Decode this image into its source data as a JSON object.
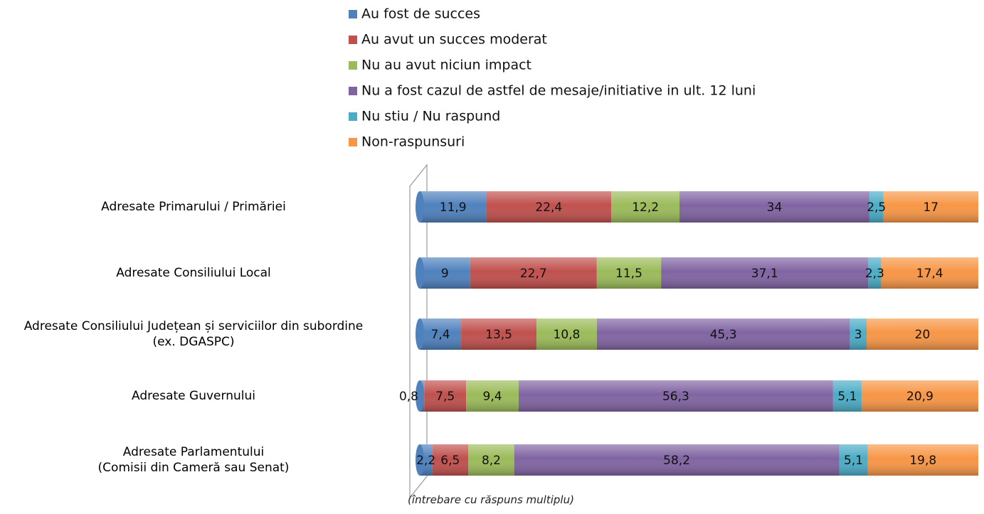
{
  "chart_data": {
    "type": "stacked-bar-horizontal",
    "categories": [
      "Adresate Primarului / Primăriei",
      "Adresate Consiliului Local",
      "Adresate Consiliului Județean și serviciilor din subordine\n(ex. DGASPC)",
      "Adresate Guvernului",
      "Adresate Parlamentului\n(Comisii din Cameră sau Senat)"
    ],
    "series": [
      {
        "name": "Au fost de succes",
        "color": "#4f81bd",
        "values": [
          11.9,
          9,
          7.4,
          0.8,
          2.2
        ],
        "value_labels": [
          "11,9",
          "9",
          "7,4",
          "0,8",
          "2,2"
        ]
      },
      {
        "name": "Au avut un succes moderat",
        "color": "#c0504d",
        "values": [
          22.4,
          22.7,
          13.5,
          7.5,
          6.5
        ],
        "value_labels": [
          "22,4",
          "22,7",
          "13,5",
          "7,5",
          "6,5"
        ]
      },
      {
        "name": "Nu au avut niciun impact",
        "color": "#9bbb59",
        "values": [
          12.2,
          11.5,
          10.8,
          9.4,
          8.2
        ],
        "value_labels": [
          "12,2",
          "11,5",
          "10,8",
          "9,4",
          "8,2"
        ]
      },
      {
        "name": "Nu a fost cazul de astfel de mesaje/initiative in ult. 12 luni",
        "color": "#8064a2",
        "values": [
          34,
          37.1,
          45.3,
          56.3,
          58.2
        ],
        "value_labels": [
          "34",
          "37,1",
          "45,3",
          "56,3",
          "58,2"
        ]
      },
      {
        "name": "Nu stiu / Nu raspund",
        "color": "#4bacc6",
        "values": [
          2.5,
          2.3,
          3,
          5.1,
          5.1
        ],
        "value_labels": [
          "2,5",
          "2,3",
          "3",
          "5,1",
          "5,1"
        ]
      },
      {
        "name": "Non-raspunsuri",
        "color": "#f79646",
        "values": [
          17,
          17.4,
          20,
          20.9,
          19.8
        ],
        "value_labels": [
          "17",
          "17,4",
          "20",
          "20,9",
          "19,8"
        ]
      }
    ],
    "xlim": [
      0,
      100
    ],
    "note": "(întrebare cu răspuns multiplu)"
  }
}
